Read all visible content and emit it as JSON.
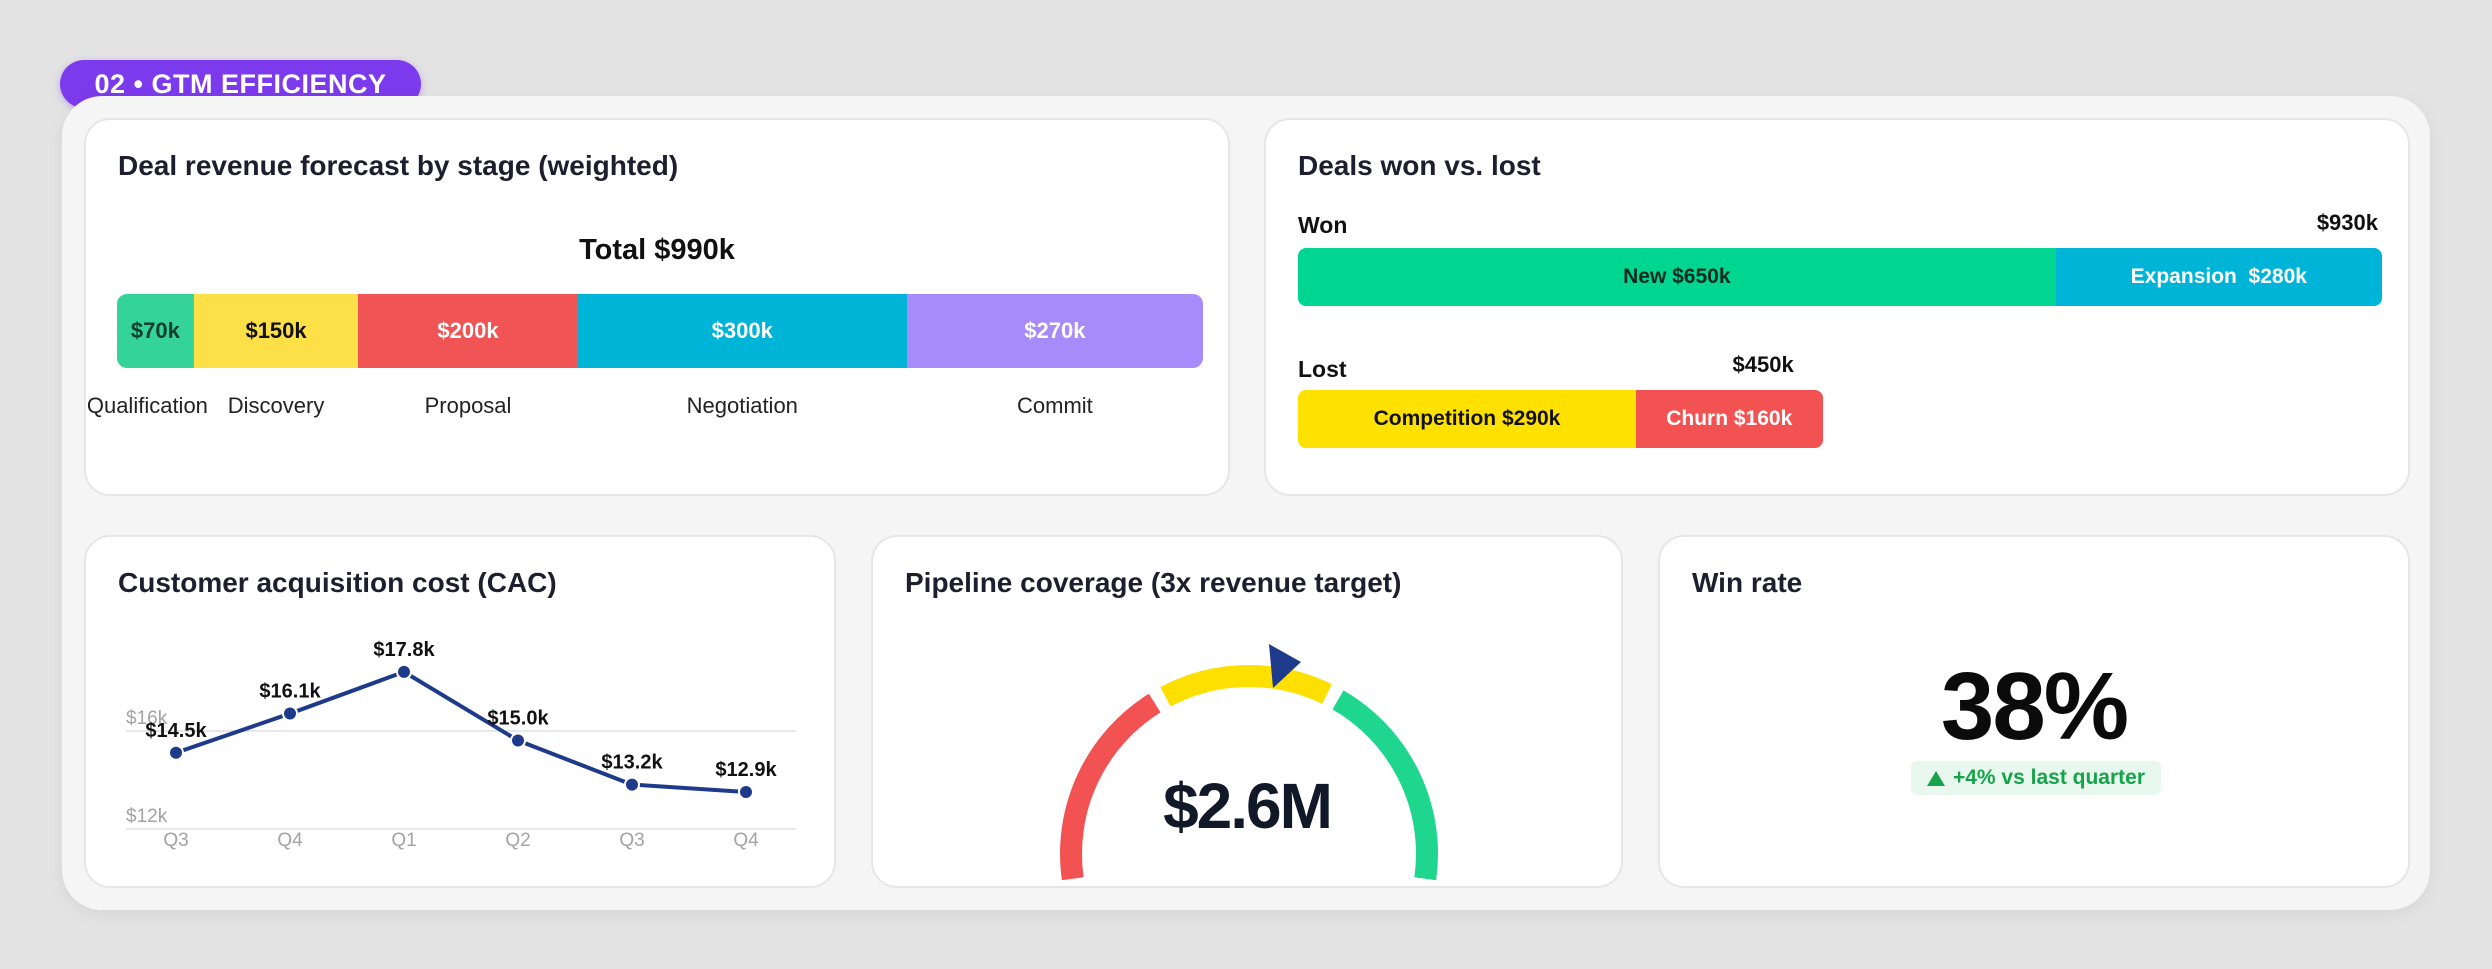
{
  "section": {
    "tag": "02 • GTM EFFICIENCY"
  },
  "forecast": {
    "title": "Deal revenue forecast by stage (weighted)",
    "total_label": "Total $990k",
    "colors": {
      "Qualification": "#34d399",
      "Discovery": "#fde047",
      "Proposal": "#f05454",
      "Negotiation": "#00b4d8",
      "Commit": "#a78bfa"
    }
  },
  "winloss": {
    "title": "Deals won vs. lost",
    "won": {
      "label": "Won",
      "total": "$930k"
    },
    "lost": {
      "label": "Lost",
      "total": "$450k"
    }
  },
  "cac": {
    "title": "Customer acquisition cost (CAC)",
    "line_color": "#1e3a8a"
  },
  "pipeline": {
    "title": "Pipeline coverage (3x revenue target)",
    "value": "$2.6M",
    "pointer_color": "#1e3a8a",
    "band_colors": [
      "#f25252",
      "#fde000",
      "#1fd68f"
    ]
  },
  "winrate": {
    "title": "Win rate",
    "value": "38%",
    "delta": "+4% vs last quarter"
  },
  "chart_data": [
    {
      "type": "bar",
      "stacked": true,
      "orientation": "horizontal",
      "title": "Deal revenue forecast by stage (weighted)",
      "subtitle": "Total $990k",
      "categories": [
        "Qualification",
        "Discovery",
        "Proposal",
        "Negotiation",
        "Commit"
      ],
      "values": [
        70,
        150,
        200,
        300,
        270
      ],
      "value_labels": [
        "$70k",
        "$150k",
        "$200k",
        "$300k",
        "$270k"
      ],
      "unit": "$k"
    },
    {
      "type": "bar",
      "stacked": true,
      "orientation": "horizontal",
      "title": "Deals won vs. lost",
      "categories": [
        "Won",
        "Lost"
      ],
      "totals": [
        "$930k",
        "$450k"
      ],
      "series": [
        {
          "name": "New",
          "category": "Won",
          "value": 650,
          "label": "New $650k",
          "color": "#00d68f"
        },
        {
          "name": "Expansion",
          "category": "Won",
          "value": 280,
          "label": "Expansion  $280k",
          "color": "#00b4d8"
        },
        {
          "name": "Competition",
          "category": "Lost",
          "value": 290,
          "label": "Competition $290k",
          "color": "#ffe100"
        },
        {
          "name": "Churn",
          "category": "Lost",
          "value": 160,
          "label": "Churn $160k",
          "color": "#f25252"
        }
      ]
    },
    {
      "type": "line",
      "title": "Customer acquisition cost (CAC)",
      "categories": [
        "Q3",
        "Q4",
        "Q1",
        "Q2",
        "Q3",
        "Q4"
      ],
      "values": [
        14.5,
        16.1,
        17.8,
        15.0,
        13.2,
        12.9
      ],
      "value_labels": [
        "$14.5k",
        "$16.1k",
        "$17.8k",
        "$15.0k",
        "$13.2k",
        "$12.9k"
      ],
      "y_ticks": [
        {
          "value": 12,
          "label": "$12k"
        },
        {
          "value": 16,
          "label": "$16k"
        }
      ],
      "grid": true
    }
  ]
}
